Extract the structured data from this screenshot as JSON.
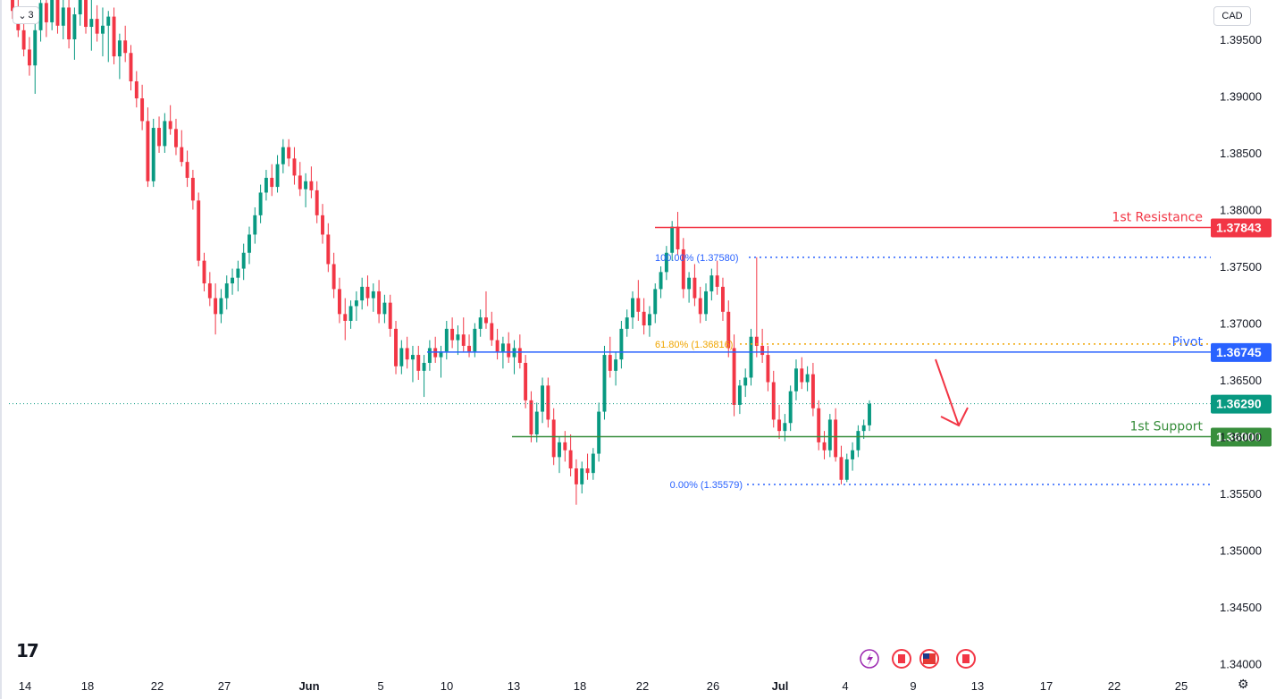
{
  "header": {
    "interval_label": "3",
    "currency": "CAD"
  },
  "chart_data": {
    "type": "candlestick",
    "y_range": [
      1.339,
      1.3995
    ],
    "y_ticks": [
      "1.39500",
      "1.39000",
      "1.38500",
      "1.38000",
      "1.37500",
      "1.37000",
      "1.36500",
      "1.36000",
      "1.35500",
      "1.35000",
      "1.34500",
      "1.34000"
    ],
    "x_ticks": [
      "14",
      "18",
      "22",
      "27",
      "Jun",
      "5",
      "10",
      "13",
      "18",
      "22",
      "26",
      "Jul",
      "4",
      "9",
      "13",
      "17",
      "22",
      "25"
    ],
    "levels": [
      {
        "label": "1st Resistance",
        "value": 1.37843,
        "badge": "1.37843",
        "color": "#f23645"
      },
      {
        "label": "Pivot",
        "value": 1.36745,
        "badge": "1.36745",
        "color": "#2962ff"
      },
      {
        "label": "1st Support",
        "value": 1.36,
        "badge": "1.36000",
        "color": "#388e3c"
      }
    ],
    "current_price": {
      "value": 1.3629,
      "badge": "1.36290",
      "color": "#089981"
    },
    "fib_levels": [
      {
        "text": "100.00% (1.37580)",
        "value": 1.3758,
        "color": "#2962ff"
      },
      {
        "text": "61.80% (1.36816)",
        "value": 1.36816,
        "color": "#f0a500"
      },
      {
        "text": "0.00% (1.35579)",
        "value": 1.35579,
        "color": "#2962ff"
      }
    ],
    "candle_colors": {
      "up": "#089981",
      "down": "#f23645"
    },
    "candles": [
      [
        1.3995,
        1.3995,
        1.3968,
        1.3975
      ],
      [
        1.3975,
        1.3985,
        1.3952,
        1.3958
      ],
      [
        1.3958,
        1.3968,
        1.3935,
        1.3941
      ],
      [
        1.3941,
        1.3952,
        1.3918,
        1.3927
      ],
      [
        1.3927,
        1.3968,
        1.3902,
        1.3958
      ],
      [
        1.3958,
        1.3995,
        1.3948,
        1.3982
      ],
      [
        1.3982,
        1.3995,
        1.3952,
        1.3965
      ],
      [
        1.3965,
        1.3995,
        1.3958,
        1.3988
      ],
      [
        1.3988,
        1.3995,
        1.3955,
        1.3962
      ],
      [
        1.3962,
        1.399,
        1.395,
        1.3978
      ],
      [
        1.3978,
        1.3995,
        1.3942,
        1.395
      ],
      [
        1.395,
        1.3978,
        1.3932,
        1.3972
      ],
      [
        1.3972,
        1.3995,
        1.3962,
        1.3985
      ],
      [
        1.3985,
        1.3995,
        1.3955,
        1.3961
      ],
      [
        1.3961,
        1.3985,
        1.394,
        1.3968
      ],
      [
        1.3968,
        1.398,
        1.3948,
        1.3955
      ],
      [
        1.3955,
        1.3978,
        1.3935,
        1.3962
      ],
      [
        1.3962,
        1.3975,
        1.393,
        1.397
      ],
      [
        1.397,
        1.3978,
        1.3928,
        1.3935
      ],
      [
        1.3935,
        1.3955,
        1.3915,
        1.3949
      ],
      [
        1.3949,
        1.3962,
        1.393,
        1.3938
      ],
      [
        1.3938,
        1.3945,
        1.3905,
        1.3913
      ],
      [
        1.3913,
        1.3922,
        1.389,
        1.3898
      ],
      [
        1.3898,
        1.391,
        1.387,
        1.3878
      ],
      [
        1.3878,
        1.389,
        1.382,
        1.3825
      ],
      [
        1.3825,
        1.388,
        1.382,
        1.3872
      ],
      [
        1.3872,
        1.3882,
        1.385,
        1.3856
      ],
      [
        1.3856,
        1.3885,
        1.385,
        1.3878
      ],
      [
        1.3878,
        1.3892,
        1.3866,
        1.3871
      ],
      [
        1.3871,
        1.388,
        1.3848,
        1.3855
      ],
      [
        1.3855,
        1.387,
        1.3838,
        1.3842
      ],
      [
        1.3842,
        1.3852,
        1.382,
        1.3828
      ],
      [
        1.3828,
        1.3835,
        1.38,
        1.3808
      ],
      [
        1.3808,
        1.3815,
        1.375,
        1.3755
      ],
      [
        1.3755,
        1.3762,
        1.3728,
        1.3735
      ],
      [
        1.3735,
        1.3745,
        1.3715,
        1.3722
      ],
      [
        1.3722,
        1.3735,
        1.369,
        1.3708
      ],
      [
        1.3708,
        1.373,
        1.37,
        1.3722
      ],
      [
        1.3722,
        1.3742,
        1.3712,
        1.3735
      ],
      [
        1.3735,
        1.3748,
        1.3725,
        1.374
      ],
      [
        1.374,
        1.3755,
        1.3728,
        1.3748
      ],
      [
        1.3748,
        1.377,
        1.3738,
        1.3762
      ],
      [
        1.3762,
        1.3785,
        1.3752,
        1.3778
      ],
      [
        1.3778,
        1.3802,
        1.377,
        1.3795
      ],
      [
        1.3795,
        1.3822,
        1.3788,
        1.3815
      ],
      [
        1.3815,
        1.3835,
        1.3808,
        1.3828
      ],
      [
        1.3828,
        1.384,
        1.3812,
        1.382
      ],
      [
        1.382,
        1.3848,
        1.3815,
        1.384
      ],
      [
        1.384,
        1.3862,
        1.3832,
        1.3855
      ],
      [
        1.3855,
        1.3862,
        1.3838,
        1.3845
      ],
      [
        1.3845,
        1.3855,
        1.3822,
        1.383
      ],
      [
        1.383,
        1.3842,
        1.3812,
        1.3818
      ],
      [
        1.3818,
        1.3832,
        1.3802,
        1.3825
      ],
      [
        1.3825,
        1.3838,
        1.381,
        1.3817
      ],
      [
        1.3817,
        1.3825,
        1.3788,
        1.3795
      ],
      [
        1.3795,
        1.3805,
        1.377,
        1.3778
      ],
      [
        1.3778,
        1.3788,
        1.3745,
        1.3752
      ],
      [
        1.3752,
        1.3762,
        1.3722,
        1.373
      ],
      [
        1.373,
        1.374,
        1.37,
        1.3708
      ],
      [
        1.3708,
        1.3722,
        1.3685,
        1.3702
      ],
      [
        1.3702,
        1.372,
        1.3695,
        1.3715
      ],
      [
        1.3715,
        1.3728,
        1.3702,
        1.372
      ],
      [
        1.372,
        1.374,
        1.3712,
        1.3732
      ],
      [
        1.3732,
        1.3742,
        1.3715,
        1.3722
      ],
      [
        1.3722,
        1.3735,
        1.371,
        1.3728
      ],
      [
        1.3728,
        1.3738,
        1.37,
        1.3708
      ],
      [
        1.3708,
        1.3725,
        1.37,
        1.3718
      ],
      [
        1.3718,
        1.3725,
        1.3688,
        1.3695
      ],
      [
        1.3695,
        1.3702,
        1.3655,
        1.3662
      ],
      [
        1.3662,
        1.3685,
        1.3655,
        1.3678
      ],
      [
        1.3678,
        1.3688,
        1.366,
        1.3668
      ],
      [
        1.3668,
        1.368,
        1.3648,
        1.3672
      ],
      [
        1.3672,
        1.368,
        1.365,
        1.3658
      ],
      [
        1.3658,
        1.3672,
        1.3635,
        1.3665
      ],
      [
        1.3665,
        1.3685,
        1.3658,
        1.3678
      ],
      [
        1.3678,
        1.3688,
        1.3665,
        1.367
      ],
      [
        1.367,
        1.368,
        1.3652,
        1.3675
      ],
      [
        1.3675,
        1.3702,
        1.3668,
        1.3695
      ],
      [
        1.3695,
        1.3705,
        1.3678,
        1.3685
      ],
      [
        1.3685,
        1.3698,
        1.3672,
        1.369
      ],
      [
        1.369,
        1.3705,
        1.3675,
        1.368
      ],
      [
        1.368,
        1.369,
        1.367,
        1.3675
      ],
      [
        1.3675,
        1.37,
        1.367,
        1.3695
      ],
      [
        1.3695,
        1.3712,
        1.3688,
        1.3705
      ],
      [
        1.3705,
        1.3728,
        1.3695,
        1.37
      ],
      [
        1.37,
        1.371,
        1.368,
        1.3685
      ],
      [
        1.3685,
        1.3695,
        1.3668,
        1.3675
      ],
      [
        1.3675,
        1.3688,
        1.366,
        1.3682
      ],
      [
        1.3682,
        1.3692,
        1.3665,
        1.367
      ],
      [
        1.367,
        1.3685,
        1.3655,
        1.3678
      ],
      [
        1.3678,
        1.369,
        1.366,
        1.3665
      ],
      [
        1.3665,
        1.3672,
        1.3625,
        1.3632
      ],
      [
        1.3632,
        1.364,
        1.3595,
        1.3602
      ],
      [
        1.3602,
        1.363,
        1.3595,
        1.3622
      ],
      [
        1.3622,
        1.3652,
        1.3612,
        1.3645
      ],
      [
        1.3645,
        1.3652,
        1.3608,
        1.3615
      ],
      [
        1.3615,
        1.3625,
        1.3575,
        1.3582
      ],
      [
        1.3582,
        1.36,
        1.3568,
        1.3595
      ],
      [
        1.3595,
        1.3605,
        1.3578,
        1.3588
      ],
      [
        1.3588,
        1.3602,
        1.3565,
        1.3572
      ],
      [
        1.3572,
        1.358,
        1.354,
        1.3558
      ],
      [
        1.3558,
        1.3578,
        1.355,
        1.3572
      ],
      [
        1.3572,
        1.3585,
        1.3562,
        1.3568
      ],
      [
        1.3568,
        1.359,
        1.3562,
        1.3585
      ],
      [
        1.3585,
        1.363,
        1.3578,
        1.3622
      ],
      [
        1.3622,
        1.368,
        1.3615,
        1.3672
      ],
      [
        1.3672,
        1.3688,
        1.3652,
        1.3658
      ],
      [
        1.3658,
        1.3675,
        1.3645,
        1.3668
      ],
      [
        1.3668,
        1.3702,
        1.366,
        1.3695
      ],
      [
        1.3695,
        1.3712,
        1.3688,
        1.3705
      ],
      [
        1.3705,
        1.3728,
        1.3695,
        1.3722
      ],
      [
        1.3722,
        1.3738,
        1.3702,
        1.371
      ],
      [
        1.371,
        1.3722,
        1.369,
        1.3698
      ],
      [
        1.3698,
        1.3715,
        1.3688,
        1.3708
      ],
      [
        1.3708,
        1.3735,
        1.37,
        1.373
      ],
      [
        1.373,
        1.375,
        1.3722,
        1.3745
      ],
      [
        1.3745,
        1.3768,
        1.3738,
        1.3762
      ],
      [
        1.3762,
        1.379,
        1.3755,
        1.3785
      ],
      [
        1.3785,
        1.3798,
        1.376,
        1.3765
      ],
      [
        1.3765,
        1.3775,
        1.3722,
        1.373
      ],
      [
        1.373,
        1.3745,
        1.3718,
        1.374
      ],
      [
        1.374,
        1.3752,
        1.3715,
        1.3722
      ],
      [
        1.3722,
        1.3732,
        1.37,
        1.3708
      ],
      [
        1.3708,
        1.3735,
        1.3702,
        1.3728
      ],
      [
        1.3728,
        1.3748,
        1.372,
        1.3742
      ],
      [
        1.3742,
        1.3755,
        1.3725,
        1.3732
      ],
      [
        1.3732,
        1.374,
        1.3702,
        1.371
      ],
      [
        1.371,
        1.372,
        1.367,
        1.3678
      ],
      [
        1.3678,
        1.369,
        1.3618,
        1.3628
      ],
      [
        1.3628,
        1.365,
        1.362,
        1.3645
      ],
      [
        1.3645,
        1.366,
        1.3635,
        1.3652
      ],
      [
        1.3652,
        1.3695,
        1.3645,
        1.3688
      ],
      [
        1.3688,
        1.3758,
        1.367,
        1.368
      ],
      [
        1.368,
        1.3695,
        1.3665,
        1.3672
      ],
      [
        1.3672,
        1.368,
        1.364,
        1.3648
      ],
      [
        1.3648,
        1.3658,
        1.3608,
        1.3615
      ],
      [
        1.3615,
        1.3628,
        1.3598,
        1.3605
      ],
      [
        1.3605,
        1.362,
        1.3596,
        1.3612
      ],
      [
        1.3612,
        1.3645,
        1.3605,
        1.364
      ],
      [
        1.364,
        1.3668,
        1.3632,
        1.366
      ],
      [
        1.366,
        1.367,
        1.3642,
        1.3648
      ],
      [
        1.3648,
        1.3662,
        1.364,
        1.3655
      ],
      [
        1.3655,
        1.3665,
        1.3618,
        1.3625
      ],
      [
        1.3625,
        1.3632,
        1.3588,
        1.3595
      ],
      [
        1.3595,
        1.3605,
        1.358,
        1.3588
      ],
      [
        1.3588,
        1.362,
        1.3582,
        1.3615
      ],
      [
        1.3615,
        1.3625,
        1.3578,
        1.3582
      ],
      [
        1.3582,
        1.3592,
        1.3558,
        1.3562
      ],
      [
        1.3562,
        1.3585,
        1.356,
        1.358
      ],
      [
        1.358,
        1.3595,
        1.357,
        1.3588
      ],
      [
        1.3588,
        1.361,
        1.3582,
        1.3605
      ],
      [
        1.3605,
        1.3615,
        1.3598,
        1.361
      ],
      [
        1.361,
        1.3632,
        1.3605,
        1.3629
      ]
    ]
  }
}
